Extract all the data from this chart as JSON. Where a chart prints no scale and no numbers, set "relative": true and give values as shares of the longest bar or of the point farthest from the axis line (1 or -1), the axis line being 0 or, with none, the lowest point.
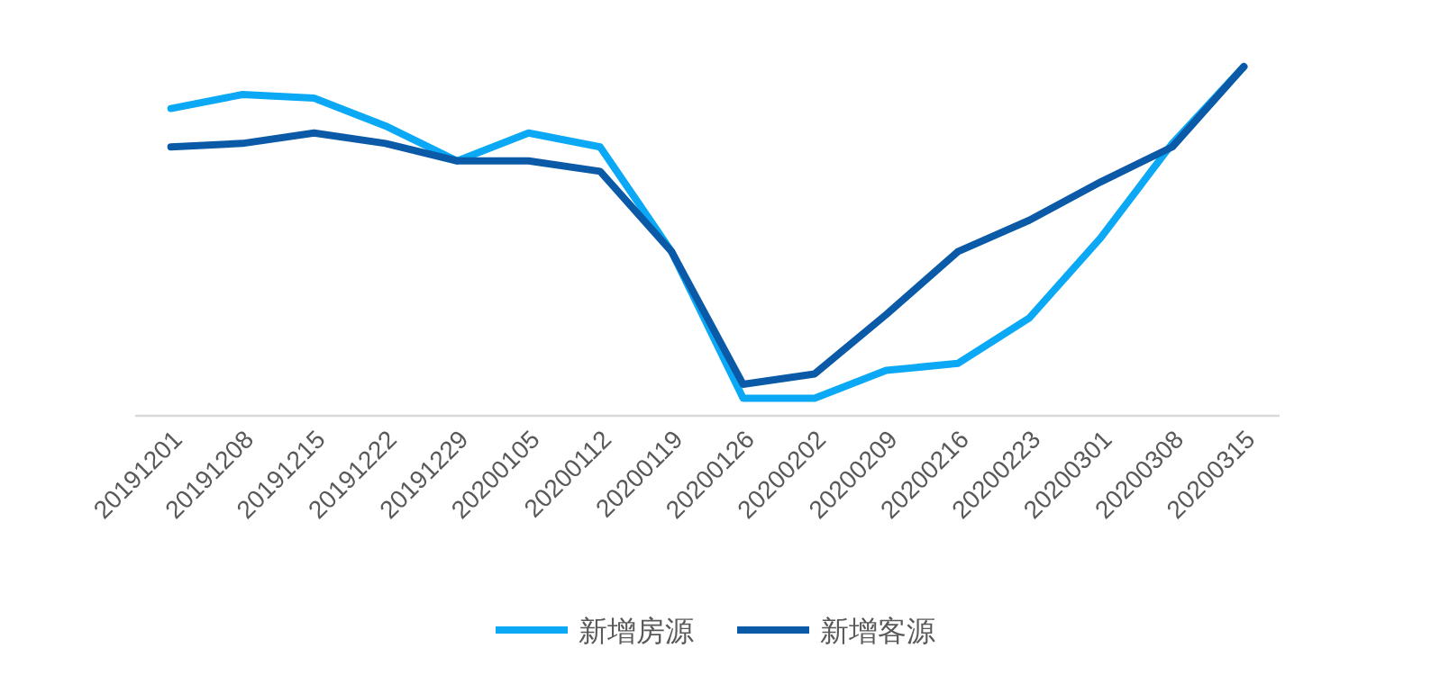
{
  "chart_data": {
    "type": "line",
    "relative": true,
    "legend": "bottom",
    "categories": [
      "20191201",
      "20191208",
      "20191215",
      "20191222",
      "20191229",
      "20200105",
      "20200112",
      "20200119",
      "20200126",
      "20200202",
      "20200209",
      "20200216",
      "20200223",
      "20200301",
      "20200308",
      "20200315"
    ],
    "series": [
      {
        "name": "新增房源",
        "color": "#0aa8f5",
        "values": [
          0.88,
          0.92,
          0.91,
          0.83,
          0.73,
          0.81,
          0.77,
          0.47,
          0.05,
          0.05,
          0.13,
          0.15,
          0.28,
          0.51,
          0.78,
          1.0
        ]
      },
      {
        "name": "新增客源",
        "color": "#0a5aa8",
        "values": [
          0.77,
          0.78,
          0.81,
          0.78,
          0.73,
          0.73,
          0.7,
          0.47,
          0.09,
          0.12,
          0.29,
          0.47,
          0.56,
          0.67,
          0.77,
          1.0
        ]
      }
    ]
  }
}
